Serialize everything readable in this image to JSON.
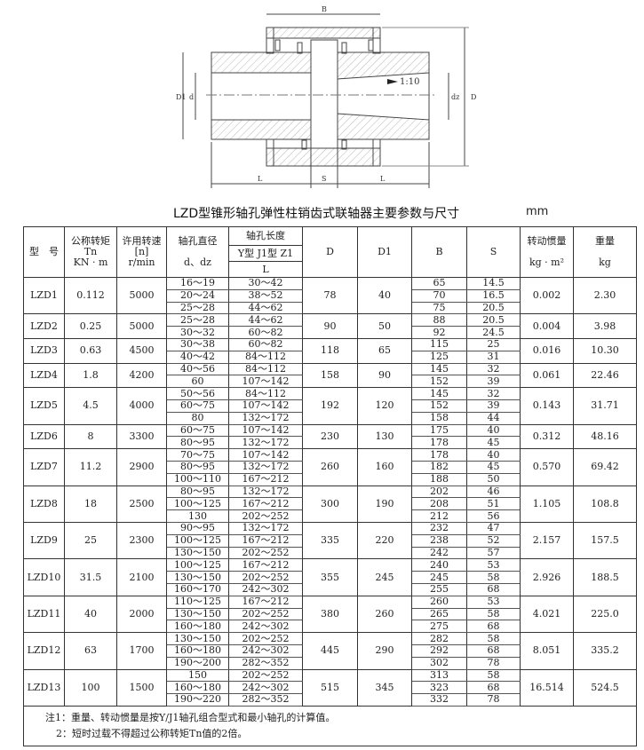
{
  "drawing": {
    "labels": {
      "B": "B",
      "L_left": "L",
      "S": "S",
      "L_right": "L",
      "D": "D",
      "D1": "D1",
      "d": "d",
      "dz": "dz",
      "taper": "1:10"
    }
  },
  "title": "LZD型锥形轴孔弹性柱销齿式联轴器主要参数与尺寸",
  "unit": "mm",
  "headers": {
    "model": "型　号",
    "tn": [
      "公称转矩",
      "Tn",
      "KN · m"
    ],
    "n": [
      "许用转速",
      "[n]",
      "r/min"
    ],
    "bore_d": [
      "轴孔直径",
      "d、dz"
    ],
    "bore_l": [
      "轴孔长度",
      "Y型 J1型 Z1",
      "L"
    ],
    "D": "D",
    "D1": "D1",
    "B": "B",
    "S": "S",
    "inertia": [
      "转动惯量",
      "kg · m²"
    ],
    "weight": [
      "重量",
      "kg"
    ]
  },
  "rows": [
    {
      "model": "LZD1",
      "tn": "0.112",
      "n": "5000",
      "D": "78",
      "D1": "40",
      "inertia": "0.002",
      "weight": "2.30",
      "bores": [
        {
          "d": "16～19",
          "L": "30～42",
          "B": "65",
          "S": "14.5"
        },
        {
          "d": "20～24",
          "L": "38～52",
          "B": "70",
          "S": "16.5"
        },
        {
          "d": "25～28",
          "L": "44～62",
          "B": "75",
          "S": "20.5"
        }
      ]
    },
    {
      "model": "LZD2",
      "tn": "0.25",
      "n": "5000",
      "D": "90",
      "D1": "50",
      "inertia": "0.004",
      "weight": "3.98",
      "bores": [
        {
          "d": "25～28",
          "L": "44～62",
          "B": "88",
          "S": "20.5"
        },
        {
          "d": "30～32",
          "L": "60～82",
          "B": "92",
          "S": "24.5"
        }
      ]
    },
    {
      "model": "LZD3",
      "tn": "0.63",
      "n": "4500",
      "D": "118",
      "D1": "65",
      "inertia": "0.016",
      "weight": "10.30",
      "bores": [
        {
          "d": "30～38",
          "L": "60～82",
          "B": "115",
          "S": "25"
        },
        {
          "d": "40～42",
          "L": "84～112",
          "B": "125",
          "S": "31"
        }
      ]
    },
    {
      "model": "LZD4",
      "tn": "1.8",
      "n": "4200",
      "D": "158",
      "D1": "90",
      "inertia": "0.061",
      "weight": "22.46",
      "bores": [
        {
          "d": "40～56",
          "L": "84～112",
          "B": "145",
          "S": "32"
        },
        {
          "d": "60",
          "L": "107～142",
          "B": "152",
          "S": "39"
        }
      ]
    },
    {
      "model": "LZD5",
      "tn": "4.5",
      "n": "4000",
      "D": "192",
      "D1": "120",
      "inertia": "0.143",
      "weight": "31.71",
      "bores": [
        {
          "d": "50～56",
          "L": "84～112",
          "B": "145",
          "S": "32"
        },
        {
          "d": "60～75",
          "L": "107～142",
          "B": "152",
          "S": "39"
        },
        {
          "d": "80",
          "L": "132～172",
          "B": "158",
          "S": "44"
        }
      ]
    },
    {
      "model": "LZD6",
      "tn": "8",
      "n": "3300",
      "D": "230",
      "D1": "130",
      "inertia": "0.312",
      "weight": "48.16",
      "bores": [
        {
          "d": "60～75",
          "L": "107～142",
          "B": "175",
          "S": "40"
        },
        {
          "d": "80～95",
          "L": "132～172",
          "B": "178",
          "S": "45"
        }
      ]
    },
    {
      "model": "LZD7",
      "tn": "11.2",
      "n": "2900",
      "D": "260",
      "D1": "160",
      "inertia": "0.570",
      "weight": "69.42",
      "bores": [
        {
          "d": "70～75",
          "L": "107～142",
          "B": "178",
          "S": "40"
        },
        {
          "d": "80～95",
          "L": "132～172",
          "B": "182",
          "S": "45"
        },
        {
          "d": "100～110",
          "L": "167～212",
          "B": "188",
          "S": "50"
        }
      ]
    },
    {
      "model": "LZD8",
      "tn": "18",
      "n": "2500",
      "D": "300",
      "D1": "190",
      "inertia": "1.105",
      "weight": "108.8",
      "bores": [
        {
          "d": "80～95",
          "L": "132～172",
          "B": "202",
          "S": "46"
        },
        {
          "d": "100～125",
          "L": "167～212",
          "B": "208",
          "S": "51"
        },
        {
          "d": "130",
          "L": "202～252",
          "B": "212",
          "S": "56"
        }
      ]
    },
    {
      "model": "LZD9",
      "tn": "25",
      "n": "2300",
      "D": "335",
      "D1": "220",
      "inertia": "2.157",
      "weight": "157.5",
      "bores": [
        {
          "d": "90～95",
          "L": "132～172",
          "B": "232",
          "S": "47"
        },
        {
          "d": "100～125",
          "L": "167～212",
          "B": "238",
          "S": "52"
        },
        {
          "d": "130～150",
          "L": "202～252",
          "B": "242",
          "S": "57"
        }
      ]
    },
    {
      "model": "LZD10",
      "tn": "31.5",
      "n": "2100",
      "D": "355",
      "D1": "245",
      "inertia": "2.926",
      "weight": "188.5",
      "bores": [
        {
          "d": "100～125",
          "L": "167～212",
          "B": "240",
          "S": "53"
        },
        {
          "d": "130～150",
          "L": "202～252",
          "B": "245",
          "S": "58"
        },
        {
          "d": "160～170",
          "L": "242～302",
          "B": "255",
          "S": "68"
        }
      ]
    },
    {
      "model": "LZD11",
      "tn": "40",
      "n": "2000",
      "D": "380",
      "D1": "260",
      "inertia": "4.021",
      "weight": "225.0",
      "bores": [
        {
          "d": "110～125",
          "L": "167～212",
          "B": "260",
          "S": "53"
        },
        {
          "d": "130～150",
          "L": "202～252",
          "B": "265",
          "S": "58"
        },
        {
          "d": "160～180",
          "L": "242～302",
          "B": "275",
          "S": "68"
        }
      ]
    },
    {
      "model": "LZD12",
      "tn": "63",
      "n": "1700",
      "D": "445",
      "D1": "290",
      "inertia": "8.051",
      "weight": "335.2",
      "bores": [
        {
          "d": "130～150",
          "L": "202～252",
          "B": "282",
          "S": "58"
        },
        {
          "d": "160～180",
          "L": "242～302",
          "B": "292",
          "S": "68"
        },
        {
          "d": "190～200",
          "L": "282～352",
          "B": "302",
          "S": "78"
        }
      ]
    },
    {
      "model": "LZD13",
      "tn": "100",
      "n": "1500",
      "D": "515",
      "D1": "345",
      "inertia": "16.514",
      "weight": "524.5",
      "bores": [
        {
          "d": "150",
          "L": "202～252",
          "B": "313",
          "S": "58"
        },
        {
          "d": "160～180",
          "L": "242～302",
          "B": "323",
          "S": "68"
        },
        {
          "d": "190～220",
          "L": "282～352",
          "B": "332",
          "S": "78"
        }
      ]
    }
  ],
  "notes": [
    "注1：重量、转动惯量是按Y/J1轴孔组合型式和最小轴孔的计算值。",
    "2：短时过载不得超过公称转矩Tn值的2倍。"
  ]
}
